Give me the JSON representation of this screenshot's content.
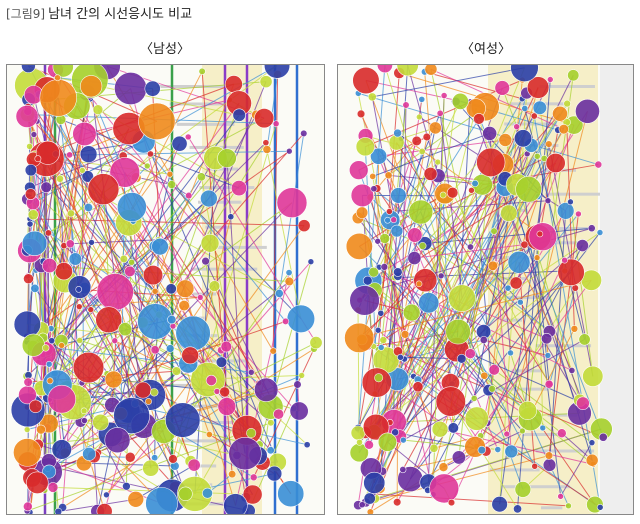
{
  "figure": {
    "label": "[그림9]",
    "title": "남녀 간의 시선응시도 비교",
    "panels": [
      {
        "label": "〈남성〉"
      },
      {
        "label": "〈여성〉"
      }
    ]
  }
}
